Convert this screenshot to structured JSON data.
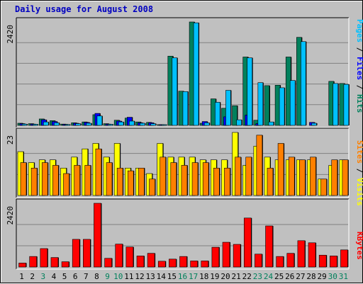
{
  "chart_data": {
    "type": "bar",
    "title": "Daily usage for August 2008",
    "days": [
      "1",
      "2",
      "3",
      "4",
      "5",
      "6",
      "7",
      "8",
      "9",
      "10",
      "11",
      "12",
      "13",
      "14",
      "15",
      "16",
      "17",
      "18",
      "19",
      "20",
      "21",
      "22",
      "23",
      "24",
      "25",
      "26",
      "27",
      "28",
      "29",
      "30",
      "31"
    ],
    "weekend_days": [
      "3",
      "9",
      "10",
      "16",
      "17",
      "23",
      "24",
      "30",
      "31"
    ],
    "colors": {
      "hits": "#00805c",
      "files": "#0000ff",
      "pages": "#00c0ff",
      "visits": "#ffff00",
      "sites": "#ff8000",
      "kbytes": "#ff0000",
      "weekday_label": "#000000",
      "weekend_label": "#00805c",
      "title": "#0000c0"
    },
    "panels": [
      {
        "id": "hits-files-pages",
        "ymax_label": "2420",
        "ymax": 2420,
        "right_label": [
          {
            "text": "Pages",
            "color": "#00c0ff"
          },
          {
            "text": " / ",
            "color": "#000000"
          },
          {
            "text": "Files",
            "color": "#0000ff"
          },
          {
            "text": " / ",
            "color": "#000000"
          },
          {
            "text": "Hits",
            "color": "#00805c"
          }
        ],
        "series": [
          {
            "name": "Hits",
            "color": "#00805c",
            "values": [
              50,
              40,
              150,
              110,
              30,
              60,
              80,
              250,
              40,
              120,
              170,
              80,
              70,
              15,
              1620,
              800,
              2420,
              50,
              620,
              400,
              460,
              1600,
              120,
              930,
              940,
              1600,
              2060,
              0,
              0,
              1030,
              980
            ]
          },
          {
            "name": "Files",
            "color": "#0000ff",
            "values": [
              40,
              30,
              130,
              90,
              25,
              50,
              70,
              280,
              30,
              100,
              190,
              60,
              60,
              10,
              0,
              0,
              0,
              90,
              0,
              200,
              0,
              240,
              40,
              0,
              0,
              0,
              0,
              70,
              0,
              0,
              0
            ]
          },
          {
            "name": "Pages",
            "color": "#00c0ff",
            "values": [
              30,
              25,
              80,
              60,
              20,
              40,
              50,
              220,
              25,
              80,
              100,
              50,
              40,
              8,
              1580,
              790,
              2400,
              60,
              540,
              820,
              130,
              1580,
              1000,
              80,
              880,
              1050,
              1960,
              50,
              0,
              980,
              960
            ]
          }
        ]
      },
      {
        "id": "visits-sites",
        "ymax_label": "23",
        "ymax": 23,
        "right_label": [
          {
            "text": "Sites",
            "color": "#ff8000"
          },
          {
            "text": " / ",
            "color": "#000000"
          },
          {
            "text": "Visits",
            "color": "#ffff00"
          }
        ],
        "series": [
          {
            "name": "Visits",
            "color": "#ffff00",
            "values": [
              16,
              12,
              13,
              13,
              10,
              14,
              17,
              19,
              14,
              19,
              10,
              10,
              8,
              19,
              14,
              14,
              14,
              13,
              13,
              13,
              23,
              11,
              18,
              14,
              13,
              13,
              13,
              13,
              6,
              11,
              13
            ]
          },
          {
            "name": "Sites",
            "color": "#ff8000",
            "values": [
              12,
              10,
              12,
              11,
              8,
              11,
              11,
              17,
              12,
              10,
              9,
              10,
              6,
              14,
              12,
              11,
              12,
              12,
              10,
              10,
              14,
              14,
              22,
              10,
              19,
              14,
              13,
              14,
              6,
              13,
              13
            ]
          }
        ]
      },
      {
        "id": "kbytes",
        "ymax_label": "2420",
        "ymax": 2420,
        "right_label": [
          {
            "text": "KBytes",
            "color": "#ff0000"
          }
        ],
        "series": [
          {
            "name": "KBytes",
            "color": "#ff0000",
            "values": [
              150,
              400,
              700,
              360,
              200,
              1050,
              1050,
              2420,
              330,
              870,
              760,
              420,
              520,
              220,
              300,
              400,
              230,
              230,
              750,
              940,
              860,
              1860,
              490,
              1560,
              400,
              520,
              1000,
              920,
              450,
              420,
              650
            ]
          }
        ]
      }
    ]
  }
}
